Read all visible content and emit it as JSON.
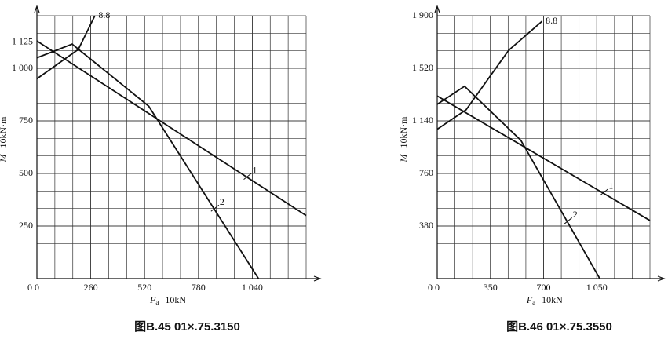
{
  "chart_data": [
    {
      "type": "line",
      "title": "图B.45   01×.75.3150",
      "y_label_symbol": "M",
      "y_label_unit": "10kN·m",
      "x_label_symbol": "F",
      "x_label_sub": "a",
      "x_label_unit": "10kN",
      "xlim": [
        0,
        1300
      ],
      "ylim": [
        0,
        1250
      ],
      "xticks": [
        0,
        260,
        520,
        780,
        {
          "value": 1040,
          "label": "1 040"
        }
      ],
      "yticks": [
        250,
        500,
        750,
        {
          "value": 1000,
          "label": "1 000"
        },
        {
          "value": 1125,
          "label": "1 125"
        }
      ],
      "grid": true,
      "series": [
        {
          "name": "1",
          "color": "#111",
          "x": [
            0,
            1300
          ],
          "values": [
            1130,
            300
          ]
        },
        {
          "name": "2",
          "color": "#111",
          "x": [
            0,
            170,
            540,
            1070
          ],
          "values": [
            1050,
            1115,
            820,
            0
          ]
        },
        {
          "name": "8.8",
          "color": "#111",
          "x": [
            0,
            200,
            280
          ],
          "values": [
            950,
            1090,
            1250
          ]
        }
      ]
    },
    {
      "type": "line",
      "title": "图B.46   01×.75.3550",
      "y_label_symbol": "M",
      "y_label_unit": "10kN·m",
      "x_label_symbol": "F",
      "x_label_sub": "a",
      "x_label_unit": "10kN",
      "xlim": [
        0,
        1400
      ],
      "ylim": [
        0,
        1900
      ],
      "xticks": [
        0,
        350,
        700,
        {
          "value": 1050,
          "label": "1 050"
        }
      ],
      "yticks": [
        380,
        760,
        {
          "value": 1140,
          "label": "1 140"
        },
        {
          "value": 1520,
          "label": "1 520"
        },
        {
          "value": 1900,
          "label": "1 900"
        }
      ],
      "grid": true,
      "series": [
        {
          "name": "1",
          "color": "#111",
          "x": [
            0,
            1400
          ],
          "values": [
            1320,
            420
          ]
        },
        {
          "name": "2",
          "color": "#111",
          "x": [
            0,
            180,
            550,
            1070
          ],
          "values": [
            1260,
            1390,
            1000,
            0
          ]
        },
        {
          "name": "8.8",
          "color": "#111",
          "x": [
            0,
            190,
            470,
            690
          ],
          "values": [
            1080,
            1220,
            1650,
            1860
          ]
        }
      ]
    }
  ]
}
